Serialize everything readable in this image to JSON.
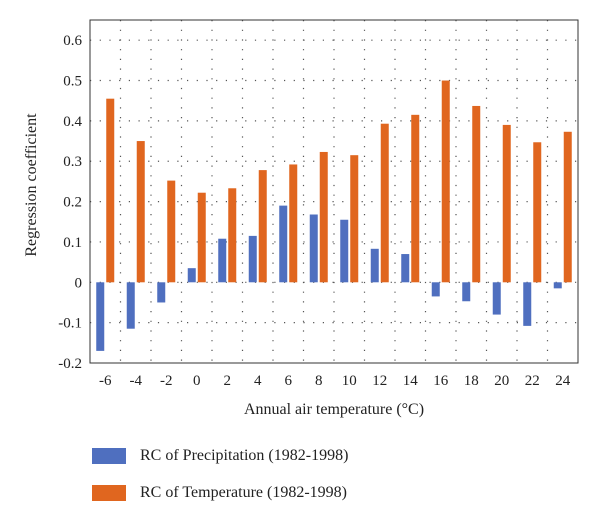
{
  "chart_data": {
    "type": "bar",
    "categories": [
      "-6",
      "-4",
      "-2",
      "0",
      "2",
      "4",
      "6",
      "8",
      "10",
      "12",
      "14",
      "16",
      "18",
      "20",
      "22",
      "24"
    ],
    "series": [
      {
        "name": "RC of Precipitation (1982-1998)",
        "color": "#4f6fbf",
        "values": [
          -0.17,
          -0.115,
          -0.05,
          0.035,
          0.108,
          0.115,
          0.19,
          0.168,
          0.155,
          0.083,
          0.07,
          -0.035,
          -0.047,
          -0.08,
          -0.108,
          -0.015
        ]
      },
      {
        "name": "RC of Temperature (1982-1998)",
        "color": "#e0661f",
        "values": [
          0.455,
          0.35,
          0.252,
          0.222,
          0.233,
          0.278,
          0.292,
          0.323,
          0.315,
          0.393,
          0.415,
          0.5,
          0.437,
          0.39,
          0.347,
          0.373
        ]
      }
    ],
    "xlabel": "Annual air temperature (°C)",
    "ylabel": "Regression coefficient",
    "ylim": [
      -0.2,
      0.65
    ],
    "yticks": [
      "-0.2",
      "-0.1",
      "0",
      "0.1",
      "0.2",
      "0.3",
      "0.4",
      "0.5",
      "0.6"
    ],
    "grid": "dotted",
    "legend_position": "bottom"
  }
}
